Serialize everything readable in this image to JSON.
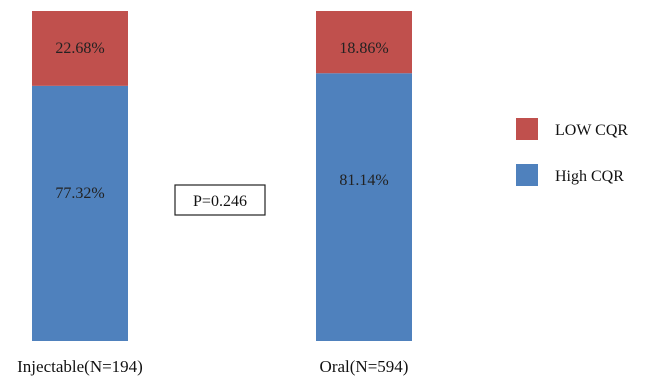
{
  "chart_data": {
    "type": "bar",
    "stacked": true,
    "percent_stacked": true,
    "categories": [
      "Injectable(N=194)",
      "Oral(N=594)"
    ],
    "series": [
      {
        "name": "High CQR",
        "color": "#4f81bd",
        "values": [
          77.32,
          81.14
        ],
        "labels": [
          "77.32%",
          "81.14%"
        ]
      },
      {
        "name": "LOW CQR",
        "color": "#c0504d",
        "values": [
          22.68,
          18.86
        ],
        "labels": [
          "22.68%",
          "18.86%"
        ]
      }
    ],
    "ylim": [
      0,
      100
    ],
    "grid": false,
    "legend_position": "right",
    "annotations": [
      {
        "text": "P=0.246",
        "position": "between-bars"
      }
    ]
  }
}
